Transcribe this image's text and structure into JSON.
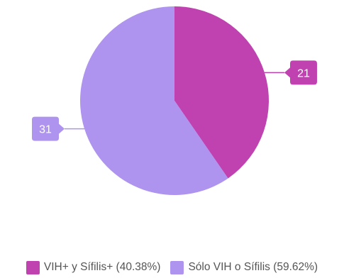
{
  "chart_data": {
    "type": "pie",
    "title": "",
    "slices": [
      {
        "label": "VIH+ y Sífilis+",
        "value": 21,
        "percent_label": "VIH+ y Sífilis+ (40.38%)",
        "color": "#c041b0"
      },
      {
        "label": "Sólo VIH o Sífilis",
        "value": 31,
        "percent_label": "Sólo VIH o Sífilis (59.62%)",
        "color": "#ae93ef"
      }
    ],
    "legend_position": "bottom",
    "data_labels": [
      "21",
      "31"
    ]
  }
}
